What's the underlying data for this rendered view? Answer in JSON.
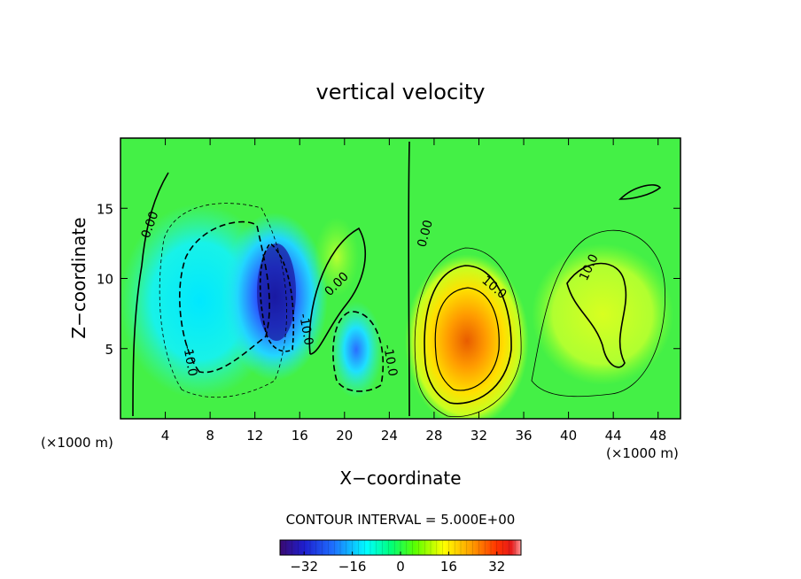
{
  "chart_data": {
    "type": "heatmap",
    "title": "vertical velocity",
    "xlabel": "X−coordinate",
    "ylabel": "Z−coordinate",
    "x_unit_left": "(×1000 m)",
    "x_unit_right": "(×1000 m)",
    "xlim": [
      0,
      50
    ],
    "ylim": [
      0,
      20
    ],
    "xticks": [
      4,
      8,
      12,
      16,
      20,
      24,
      28,
      32,
      36,
      40,
      44,
      48
    ],
    "xtick_labels": [
      "4",
      "8",
      "12",
      "16",
      "20",
      "24",
      "28",
      "32",
      "36",
      "40",
      "44",
      "48"
    ],
    "yticks": [
      5,
      10,
      15
    ],
    "ytick_labels": [
      "5",
      "10",
      "15"
    ],
    "contour_interval_text": "CONTOUR INTERVAL = 5.000E+00",
    "contour_labels": [
      {
        "text": "0.00",
        "x": 2.5,
        "z": 13.8
      },
      {
        "text": "0.00",
        "x": 27.1,
        "z": 13.3
      },
      {
        "text": "0.00",
        "x": 19.2,
        "z": 9.3
      },
      {
        "text": "-10.0",
        "x": 6.1,
        "z": 4.3
      },
      {
        "text": "-10.0",
        "x": 15.5,
        "z": 6.3
      },
      {
        "text": "-10.0",
        "x": 24.0,
        "z": 4.3
      },
      {
        "text": "10.0",
        "x": 33.0,
        "z": 9.4
      },
      {
        "text": "10.0",
        "x": 43.0,
        "z": 10.8
      }
    ],
    "features": [
      {
        "kind": "downdraft",
        "center": [
          14.5,
          8.5
        ],
        "min_value": -35
      },
      {
        "kind": "downdraft",
        "center": [
          8.0,
          7.0
        ],
        "min_value": -18
      },
      {
        "kind": "downdraft",
        "center": [
          21.0,
          4.8
        ],
        "min_value": -22
      },
      {
        "kind": "updraft",
        "center": [
          31.0,
          6.2
        ],
        "max_value": 28
      },
      {
        "kind": "updraft",
        "center": [
          43.0,
          8.0
        ],
        "max_value": 12
      },
      {
        "kind": "updraft",
        "center": [
          19.5,
          10.5
        ],
        "max_value": 10
      }
    ],
    "colorbar": {
      "range": [
        -40,
        40
      ],
      "ticks": [
        -32,
        -16,
        0,
        16,
        32
      ],
      "tick_labels": [
        "−32",
        "−16",
        "0",
        "16",
        "32"
      ],
      "colors": [
        "#3a0a70",
        "#1e1ecf",
        "#1e6fff",
        "#00ffff",
        "#00ff7a",
        "#5aff00",
        "#ffff00",
        "#ff9900",
        "#ff3300",
        "#e61a1a",
        "#ff9999"
      ]
    }
  }
}
